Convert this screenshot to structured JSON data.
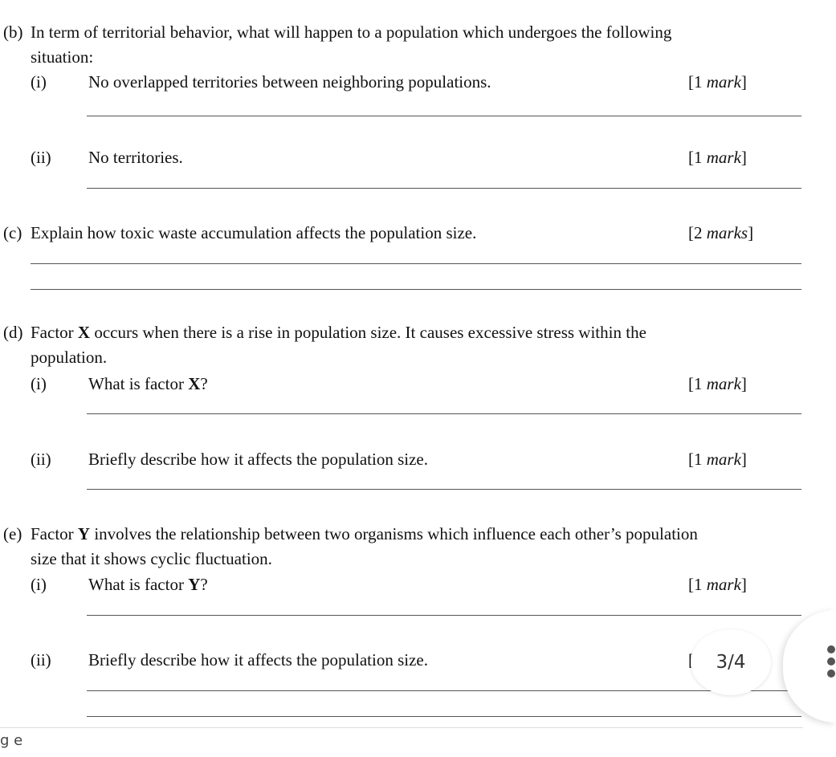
{
  "b": {
    "label": "(b)",
    "text1": "In term of territorial behavior, what will happen to a population which undergoes the following",
    "text2": "situation:",
    "i": {
      "num": "(i)",
      "text": "No overlapped territories between neighboring populations.",
      "mark_n": "[1 ",
      "mark_w": "mark",
      "mark_e": "]"
    },
    "ii": {
      "num": "(ii)",
      "text": "No territories.",
      "mark_n": "[1 ",
      "mark_w": "mark",
      "mark_e": "]"
    }
  },
  "c": {
    "label": "(c)",
    "text": "Explain how toxic waste accumulation affects the population size.",
    "mark_n": "[2 ",
    "mark_w": "marks",
    "mark_e": "]"
  },
  "d": {
    "label": "(d)",
    "text1a": "Factor ",
    "text1b": "X",
    "text1c": " occurs when there is a rise in population size. It causes excessive stress within the",
    "text2": "population.",
    "i": {
      "num": "(i)",
      "texta": "What is factor ",
      "textb": "X",
      "textc": "?",
      "mark_n": "[1 ",
      "mark_w": "mark",
      "mark_e": "]"
    },
    "ii": {
      "num": "(ii)",
      "text": "Briefly describe how it affects the population size.",
      "mark_n": "[1 ",
      "mark_w": "mark",
      "mark_e": "]"
    }
  },
  "e": {
    "label": "(e)",
    "text1a": "Factor ",
    "text1b": "Y",
    "text1c": " involves the relationship between two organisms which influence each other’s population",
    "text2": "size that it shows cyclic fluctuation.",
    "i": {
      "num": "(i)",
      "texta": "What is factor ",
      "textb": "Y",
      "textc": "?",
      "mark_n": "[1 ",
      "mark_w": "mark",
      "mark_e": "]"
    },
    "ii": {
      "num": "(ii)",
      "text": "Briefly describe how it affects the population size.",
      "mark_partial": "["
    }
  },
  "viewer": {
    "page_indicator": "3/4",
    "menu_icon": "more-vert-icon",
    "footer_fragment": "g e"
  }
}
